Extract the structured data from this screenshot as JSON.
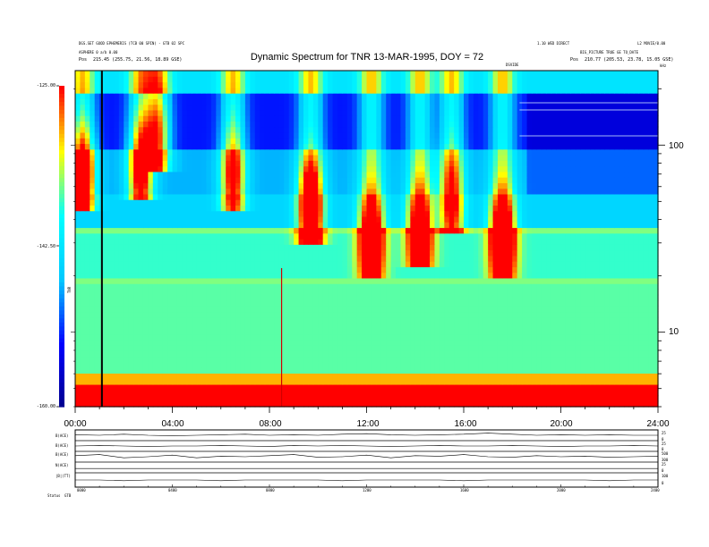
{
  "header": {
    "left_line1": "DGS.SET GOOD EPHEMERIS (TCB 00 SPIN) - GTB 02 SPC",
    "left_line2": "ASPHERE 0 a/b 0.00",
    "left_line3_label": "Pos",
    "left_line3_value": "215.45 (255.75, 21.56, 18.89 GSE)",
    "right_line1": "1.10 WED DIRECT",
    "right_line1b": "L2 MOVIE/0.00",
    "right_line2": "BIG_PICTURE  TRUE GE TO_DATE",
    "right_line3_label": "Pos",
    "right_line3_value": "210.77 (205.53, 23.78, 15.05 GSE)"
  },
  "chart_data": [
    {
      "type": "heatmap",
      "title": "Dynamic Spectrum for TNR 13-MAR-1995, DOY = 72",
      "xlabel": "",
      "ylabel": "TNR",
      "x_ticks": [
        "00:00",
        "04:00",
        "08:00",
        "12:00",
        "16:00",
        "20:00",
        "24:00"
      ],
      "x_range_hours": [
        0,
        24
      ],
      "y_scale": "log",
      "y_range_khz": [
        4,
        250
      ],
      "y_tick_labels": [
        "100",
        "10"
      ],
      "y_unit": "kHz",
      "colorbar": {
        "ticks": [
          "-125.00",
          "-142.50",
          "-160.00"
        ],
        "range": [
          -160,
          -125
        ],
        "colors": [
          "#00008b",
          "#0000ff",
          "#00c8ff",
          "#00ffff",
          "#ffff00",
          "#ff0000"
        ]
      },
      "annotations": {
        "marker_label": "DSVIDE"
      },
      "bursts": [
        {
          "t": 0.3,
          "fmin": 45,
          "fmax": 250,
          "peak": 1.0
        },
        {
          "t": 2.7,
          "fmin": 50,
          "fmax": 250,
          "peak": 0.75
        },
        {
          "t": 3.4,
          "fmin": 70,
          "fmax": 250,
          "peak": 0.6
        },
        {
          "t": 6.5,
          "fmin": 45,
          "fmax": 250,
          "peak": 0.6
        },
        {
          "t": 9.7,
          "fmin": 30,
          "fmax": 250,
          "peak": 1.0
        },
        {
          "t": 12.2,
          "fmin": 20,
          "fmax": 250,
          "peak": 0.85
        },
        {
          "t": 14.2,
          "fmin": 22,
          "fmax": 250,
          "peak": 0.8
        },
        {
          "t": 15.5,
          "fmin": 35,
          "fmax": 250,
          "peak": 0.55
        },
        {
          "t": 17.6,
          "fmin": 20,
          "fmax": 250,
          "peak": 1.0
        }
      ]
    },
    {
      "type": "line",
      "title": "",
      "rows": [
        {
          "label": "B(ACE)",
          "values": [
            0.55,
            0.5,
            0.6,
            0.5,
            0.45,
            0.5,
            0.55,
            0.6,
            0.5,
            0.55,
            0.5,
            0.6,
            0.65,
            0.55,
            0.5,
            0.55,
            0.6,
            0.7,
            0.6,
            0.5,
            0.55,
            0.5,
            0.55,
            0.5,
            0.5
          ]
        },
        {
          "label": "B(ACE)",
          "values": [
            0.5,
            0.55,
            0.5,
            0.45,
            0.5,
            0.5,
            0.55,
            0.5,
            0.45,
            0.55,
            0.5,
            0.55,
            0.5,
            0.45,
            0.5,
            0.55,
            0.5,
            0.5,
            0.55,
            0.5,
            0.45,
            0.5,
            0.5,
            0.55,
            0.5
          ]
        },
        {
          "label": "B(ACE)",
          "values": [
            0.6,
            0.7,
            0.4,
            0.5,
            0.65,
            0.4,
            0.55,
            0.5,
            0.6,
            0.7,
            0.45,
            0.5,
            0.65,
            0.4,
            0.6,
            0.55,
            0.7,
            0.5,
            0.45,
            0.6,
            0.5,
            0.55,
            0.45,
            0.5,
            0.55
          ]
        },
        {
          "label": "N(ACE)",
          "values": [
            0.4,
            0.4,
            0.4,
            0.4,
            0.4,
            0.4,
            0.4,
            0.4,
            0.4,
            0.4,
            0.4,
            0.4,
            0.4,
            0.4,
            0.4,
            0.4,
            0.4,
            0.4,
            0.4,
            0.4,
            0.4,
            0.4,
            0.4,
            0.4,
            0.4
          ]
        },
        {
          "label": "|B|(TT)",
          "values": [
            0.5,
            0.5,
            0.45,
            0.5,
            0.5,
            0.5,
            0.45,
            0.5,
            0.5,
            0.5,
            0.5,
            0.45,
            0.5,
            0.5,
            0.5,
            0.5,
            0.45,
            0.5,
            0.5,
            0.5,
            0.5,
            0.5,
            0.45,
            0.5,
            0.5
          ]
        }
      ],
      "right_ticks": [
        [
          "25",
          "0"
        ],
        [
          "25",
          "0"
        ],
        [
          "500",
          "300"
        ],
        [
          "25",
          "0"
        ],
        [
          "100",
          "0"
        ]
      ],
      "x_ticks": [
        "0000",
        "0400",
        "0800",
        "1200",
        "1600",
        "2000",
        "2400"
      ]
    }
  ],
  "footer": {
    "label": "Status",
    "value": "GTB"
  }
}
